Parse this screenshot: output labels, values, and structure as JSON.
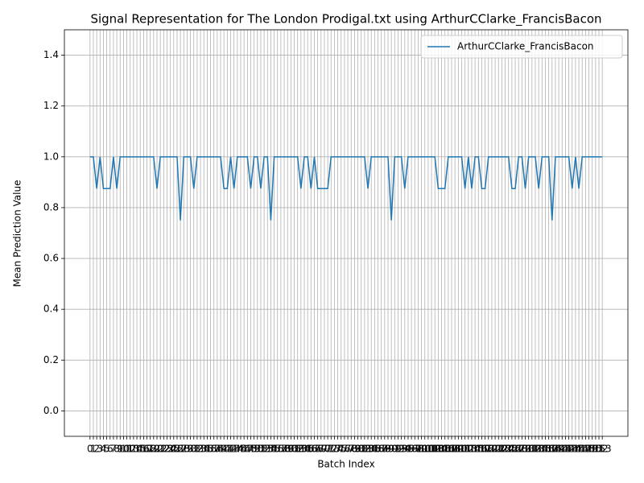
{
  "chart_data": {
    "type": "line",
    "title": "Signal Representation for The London Prodigal.txt using ArthurCClarke_FrancisBacon",
    "xlabel": "Batch Index",
    "ylabel": "Mean Prediction Value",
    "x": [
      0,
      1,
      2,
      3,
      4,
      5,
      6,
      7,
      8,
      9,
      10,
      11,
      12,
      13,
      14,
      15,
      16,
      17,
      18,
      19,
      20,
      21,
      22,
      23,
      24,
      25,
      26,
      27,
      28,
      29,
      30,
      31,
      32,
      33,
      34,
      35,
      36,
      37,
      38,
      39,
      40,
      41,
      42,
      43,
      44,
      45,
      46,
      47,
      48,
      49,
      50,
      51,
      52,
      53,
      54,
      55,
      56,
      57,
      58,
      59,
      60,
      61,
      62,
      63,
      64,
      65,
      66,
      67,
      68,
      69,
      70,
      71,
      72,
      73,
      74,
      75,
      76,
      77,
      78,
      79,
      80,
      81,
      82,
      83,
      84,
      85,
      86,
      87,
      88,
      89,
      90,
      91,
      92,
      93,
      94,
      95,
      96,
      97,
      98,
      99,
      100,
      101,
      102,
      103,
      104,
      105,
      106,
      107,
      108,
      109,
      110,
      111,
      112,
      113,
      114,
      115,
      116,
      117,
      118,
      119,
      120,
      121,
      122,
      123,
      124,
      125,
      126,
      127,
      128,
      129,
      130,
      131,
      132,
      133,
      134,
      135,
      136,
      137,
      138,
      139,
      140,
      141,
      142,
      143,
      144,
      145,
      146,
      147,
      148,
      149,
      150,
      151,
      152,
      153
    ],
    "series": [
      {
        "name": "ArthurCClarke_FrancisBacon",
        "color": "#1f77b4",
        "values": [
          1,
          1,
          0.875,
          1,
          0.875,
          0.875,
          0.875,
          1,
          0.875,
          1,
          1,
          1,
          1,
          1,
          1,
          1,
          1,
          1,
          1,
          1,
          0.875,
          1,
          1,
          1,
          1,
          1,
          1,
          0.75,
          1,
          1,
          1,
          0.875,
          1,
          1,
          1,
          1,
          1,
          1,
          1,
          1,
          0.875,
          0.875,
          1,
          0.875,
          1,
          1,
          1,
          1,
          0.875,
          1,
          1,
          0.875,
          1,
          1,
          0.75,
          1,
          1,
          1,
          1,
          1,
          1,
          1,
          1,
          0.875,
          1,
          1,
          0.875,
          1,
          0.875,
          0.875,
          0.875,
          0.875,
          1,
          1,
          1,
          1,
          1,
          1,
          1,
          1,
          1,
          1,
          1,
          0.875,
          1,
          1,
          1,
          1,
          1,
          1,
          0.75,
          1,
          1,
          1,
          0.875,
          1,
          1,
          1,
          1,
          1,
          1,
          1,
          1,
          1,
          0.875,
          0.875,
          0.875,
          1,
          1,
          1,
          1,
          1,
          0.875,
          1,
          0.875,
          1,
          1,
          0.875,
          0.875,
          1,
          1,
          1,
          1,
          1,
          1,
          1,
          0.875,
          0.875,
          1,
          1,
          0.875,
          1,
          1,
          1,
          0.875,
          1,
          1,
          1,
          0.75,
          1,
          1,
          1,
          1,
          1,
          0.875,
          1,
          0.875,
          1,
          1,
          1,
          1,
          1,
          1,
          1
        ]
      }
    ],
    "xlim": [
      -7.65,
      160.65
    ],
    "xticks": [
      0,
      1,
      2,
      3,
      4,
      5,
      6,
      7,
      8,
      9,
      10,
      11,
      12,
      13,
      14,
      15,
      16,
      17,
      18,
      19,
      20,
      21,
      22,
      23,
      24,
      25,
      26,
      27,
      28,
      29,
      30,
      31,
      32,
      33,
      34,
      35,
      36,
      37,
      38,
      39,
      40,
      41,
      42,
      43,
      44,
      45,
      46,
      47,
      48,
      49,
      50,
      51,
      52,
      53,
      54,
      55,
      56,
      57,
      58,
      59,
      60,
      61,
      62,
      63,
      64,
      65,
      66,
      67,
      68,
      69,
      70,
      71,
      72,
      73,
      74,
      75,
      76,
      77,
      78,
      79,
      80,
      81,
      82,
      83,
      84,
      85,
      86,
      87,
      88,
      89,
      90,
      91,
      92,
      93,
      94,
      95,
      96,
      97,
      98,
      99,
      100,
      101,
      102,
      103,
      104,
      105,
      106,
      107,
      108,
      109,
      110,
      111,
      112,
      113,
      114,
      115,
      116,
      117,
      118,
      119,
      120,
      121,
      122,
      123,
      124,
      125,
      126,
      127,
      128,
      129,
      130,
      131,
      132,
      133,
      134,
      135,
      136,
      137,
      138,
      139,
      140,
      141,
      142,
      143,
      144,
      145,
      146,
      147,
      148,
      149,
      150,
      151,
      152,
      153
    ],
    "ylim": [
      -0.1,
      1.5
    ],
    "yticks": [
      {
        "value": 0,
        "label": "0.0"
      },
      {
        "value": 0.2,
        "label": "0.2"
      },
      {
        "value": 0.4,
        "label": "0.4"
      },
      {
        "value": 0.6,
        "label": "0.6"
      },
      {
        "value": 0.8,
        "label": "0.8"
      },
      {
        "value": 1.0,
        "label": "1.0"
      },
      {
        "value": 1.2,
        "label": "1.2"
      },
      {
        "value": 1.4,
        "label": "1.4"
      }
    ],
    "grid": true,
    "legend": "upper right"
  }
}
